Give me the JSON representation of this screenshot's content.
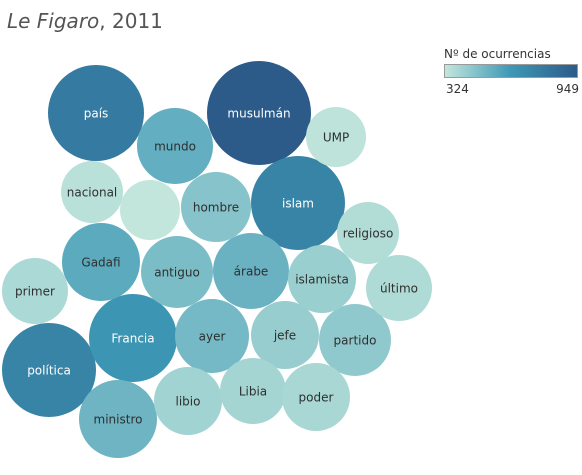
{
  "title": {
    "italic": "Le Figaro",
    "rest": ", 2011"
  },
  "legend": {
    "title": "Nº de ocurrencias",
    "min_label": "324",
    "max_label": "949"
  },
  "colors": {
    "low": "#c2e6dc",
    "mid": "#3d98b5",
    "high": "#2c5b8a",
    "dark_text": "#2f2f2f",
    "light_text": "#ffffff"
  },
  "chart_data": {
    "type": "packed-bubble",
    "title": "Le Figaro, 2011",
    "color_legend": "Nº de ocurrencias",
    "color_range": [
      324,
      949
    ],
    "bubbles": [
      {
        "label": "musulmán",
        "value": 949
      },
      {
        "label": "país",
        "value": 830
      },
      {
        "label": "política",
        "value": 790
      },
      {
        "label": "islam",
        "value": 790
      },
      {
        "label": "Francia",
        "value": 720
      },
      {
        "label": "Gadafi",
        "value": 620
      },
      {
        "label": "mundo",
        "value": 600
      },
      {
        "label": "árabe",
        "value": 580
      },
      {
        "label": "ministro",
        "value": 570
      },
      {
        "label": "ayer",
        "value": 550
      },
      {
        "label": "antiguo",
        "value": 530
      },
      {
        "label": "hombre",
        "value": 500
      },
      {
        "label": "partido",
        "value": 470
      },
      {
        "label": "jefe",
        "value": 450
      },
      {
        "label": "islamista",
        "value": 440
      },
      {
        "label": "libio",
        "value": 420
      },
      {
        "label": "Libia",
        "value": 410
      },
      {
        "label": "poder",
        "value": 400
      },
      {
        "label": "primer",
        "value": 390
      },
      {
        "label": "último",
        "value": 380
      },
      {
        "label": "religioso",
        "value": 370
      },
      {
        "label": "nacional",
        "value": 350
      },
      {
        "label": "UMP",
        "value": 340
      },
      {
        "label": "",
        "value": 324
      }
    ]
  }
}
